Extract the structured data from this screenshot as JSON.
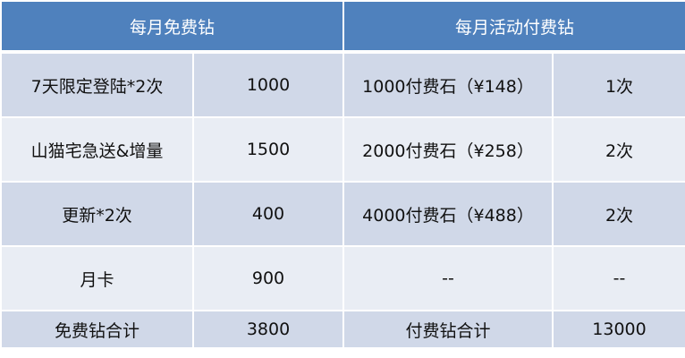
{
  "header": {
    "free": "每月免费钻",
    "paid": "每月活动付费钻"
  },
  "rows": [
    {
      "free_item": "7天限定登陆*2次",
      "free_amount": "1000",
      "paid_item": "1000付费石（¥148）",
      "paid_count": "1次"
    },
    {
      "free_item": "山猫宅急送&增量",
      "free_amount": "1500",
      "paid_item": "2000付费石（¥258）",
      "paid_count": "2次"
    },
    {
      "free_item": "更新*2次",
      "free_amount": "400",
      "paid_item": "4000付费石（¥488）",
      "paid_count": "2次"
    },
    {
      "free_item": "月卡",
      "free_amount": "900",
      "paid_item": "--",
      "paid_count": "--"
    }
  ],
  "total": {
    "free_label": "免费钻合计",
    "free_value": "3800",
    "paid_label": "付费钻合计",
    "paid_value": "13000"
  },
  "colors": {
    "header": "#4f81bd",
    "row_dark": "#d0d8e8",
    "row_light": "#e9edf4"
  }
}
